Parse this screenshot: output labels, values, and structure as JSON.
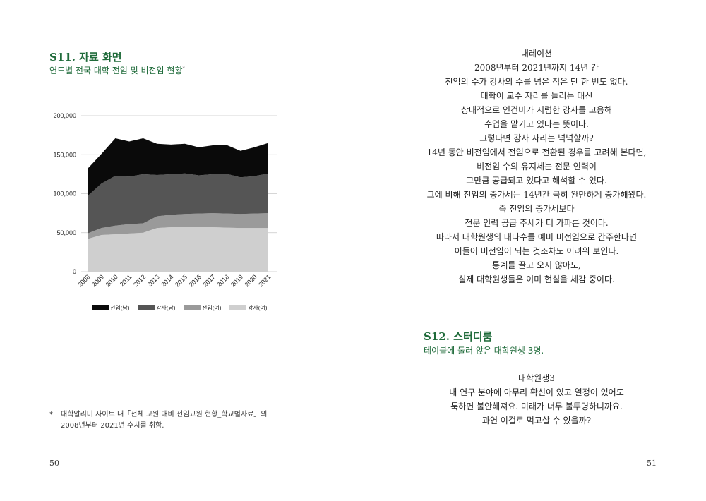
{
  "left_page": {
    "scene_title": "S11. 자료 화면",
    "scene_subtitle": "연도별 전국 대학 전임 및 비전임 현황",
    "footnote_marker": "*",
    "footnote_lines": [
      "대학알리미 사이트 내「전체 교원 대비 전임교원 현황_학교별자료」의",
      "2008년부터 2021년 수치를 취함."
    ],
    "page_number": "50"
  },
  "right_page": {
    "narration_heading": "내레이션",
    "narration_lines": [
      "2008년부터 2021년까지 14년 간",
      "전임의 수가 강사의 수를 넘은 적은 단 한 번도 없다.",
      "대학이 교수 자리를 늘리는 대신",
      "상대적으로 인건비가 저렴한 강사를 고용해",
      "수업을 맡기고 있다는 뜻이다.",
      "그렇다면 강사 자리는 넉넉할까?",
      "14년 동안 비전임에서 전임으로 전환된 경우를 고려해 본다면,",
      "비전임 수의 유지세는 전문 인력이",
      "그만큼 공급되고 있다고 해석할 수 있다.",
      "그에 비해 전임의 증가세는 14년간 극히 완만하게 증가해왔다.",
      "즉 전임의 증가세보다",
      "전문 인력 공급 추세가 더 가파른 것이다.",
      "따라서 대학원생의 대다수를 예비 비전임으로 간주한다면",
      "이들이 비전임이 되는 것조차도 어려워 보인다.",
      "통계를 끌고 오지 않아도,",
      "실제 대학원생들은 이미 현실을 체감 중이다."
    ],
    "scene_title": "S12. 스터디룸",
    "scene_subtitle": "테이블에 둘러 앉은 대학원생 3명.",
    "dialogue_speaker": "대학원생3",
    "dialogue_lines": [
      "내 연구 분야에 아무리 확신이 있고 열정이 있어도",
      "툭하면 불안해져요. 미래가 너무 불투명하니까요.",
      "과연 이걸로 먹고살 수 있을까?"
    ],
    "page_number": "51"
  },
  "colors": {
    "accent_green": "#1f6b3a"
  },
  "chart_data": {
    "type": "area",
    "stacked": true,
    "x": [
      "2008",
      "2009",
      "2010",
      "2011",
      "2012",
      "2013",
      "2014",
      "2015",
      "2016",
      "2017",
      "2018",
      "2019",
      "2020",
      "2021"
    ],
    "ylim": [
      0,
      200000
    ],
    "yticks": [
      0,
      50000,
      100000,
      150000,
      200000
    ],
    "ytick_labels": [
      "0",
      "50,000",
      "100,000",
      "150,000",
      "200,000"
    ],
    "grid": true,
    "legend_position": "bottom",
    "series": [
      {
        "name": "강사(여)",
        "color": "#cfcfcf",
        "values": [
          42000,
          47000,
          48000,
          49000,
          50000,
          56000,
          57000,
          57000,
          57000,
          57000,
          56500,
          56000,
          56000,
          56000
        ]
      },
      {
        "name": "전임(여)",
        "color": "#9a9a9a",
        "values": [
          7000,
          9000,
          11000,
          12000,
          12000,
          15000,
          16000,
          17000,
          17500,
          18000,
          18000,
          18000,
          18500,
          19000
        ]
      },
      {
        "name": "강사(남)",
        "color": "#555555",
        "values": [
          48000,
          57000,
          64000,
          61000,
          63000,
          53000,
          52000,
          52000,
          49000,
          50000,
          51000,
          47000,
          48000,
          51000
        ]
      },
      {
        "name": "전임(남)",
        "color": "#0a0a0a",
        "values": [
          35000,
          38000,
          48000,
          45000,
          46000,
          40000,
          38000,
          38000,
          36000,
          37000,
          37000,
          34000,
          37000,
          39000
        ]
      }
    ],
    "legend_order": [
      "전임(남)",
      "강사(남)",
      "전임(여)",
      "강사(여)"
    ]
  }
}
